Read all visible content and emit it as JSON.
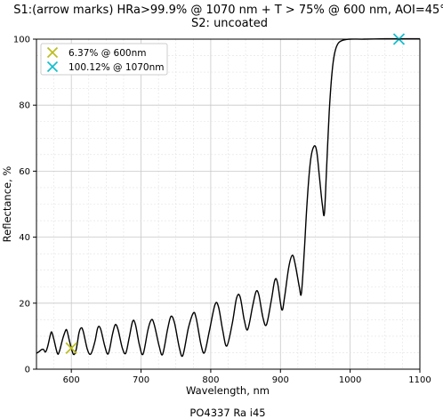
{
  "chart_data": {
    "type": "line",
    "title_line1": "S1:(arrow marks) HRa>99.9% @ 1070 nm + T > 75% @ 600 nm, AOI=45°",
    "title_line2": "S2: uncoated",
    "xlabel": "Wavelength, nm",
    "ylabel": "Reflectance, %",
    "footer": "PO4337 Ra i45",
    "xlim": [
      550,
      1100
    ],
    "ylim": [
      0,
      100
    ],
    "xticks": [
      600,
      700,
      800,
      900,
      1000,
      1100
    ],
    "yticks": [
      0,
      20,
      40,
      60,
      80,
      100
    ],
    "grid": true,
    "line_color": "#000000",
    "series": [
      {
        "points": [
          [
            550,
            4.8
          ],
          [
            553,
            5.2
          ],
          [
            557,
            5.9
          ],
          [
            560,
            6.0
          ],
          [
            563,
            5.2
          ],
          [
            566,
            6.8
          ],
          [
            570,
            10.5
          ],
          [
            572,
            11.2
          ],
          [
            575,
            9.0
          ],
          [
            580,
            4.8
          ],
          [
            583,
            5.5
          ],
          [
            588,
            9.5
          ],
          [
            592,
            11.8
          ],
          [
            594,
            11.5
          ],
          [
            598,
            8.0
          ],
          [
            603,
            4.5
          ],
          [
            607,
            6.0
          ],
          [
            611,
            11.0
          ],
          [
            614,
            12.5
          ],
          [
            617,
            11.5
          ],
          [
            623,
            6.0
          ],
          [
            628,
            4.6
          ],
          [
            634,
            8.5
          ],
          [
            638,
            12.6
          ],
          [
            642,
            12.2
          ],
          [
            648,
            7.0
          ],
          [
            653,
            4.7
          ],
          [
            659,
            10.5
          ],
          [
            663,
            13.5
          ],
          [
            667,
            12.0
          ],
          [
            673,
            6.5
          ],
          [
            678,
            4.8
          ],
          [
            683,
            9.5
          ],
          [
            688,
            14.5
          ],
          [
            692,
            13.5
          ],
          [
            698,
            7.0
          ],
          [
            703,
            4.6
          ],
          [
            710,
            12.0
          ],
          [
            715,
            15.0
          ],
          [
            719,
            13.5
          ],
          [
            726,
            7.0
          ],
          [
            731,
            4.5
          ],
          [
            738,
            12.0
          ],
          [
            743,
            16.0
          ],
          [
            748,
            14.0
          ],
          [
            755,
            6.5
          ],
          [
            760,
            4.2
          ],
          [
            768,
            12.5
          ],
          [
            775,
            17.0
          ],
          [
            779,
            15.5
          ],
          [
            786,
            7.5
          ],
          [
            791,
            5.0
          ],
          [
            798,
            11.5
          ],
          [
            806,
            19.5
          ],
          [
            811,
            19.0
          ],
          [
            817,
            12.0
          ],
          [
            823,
            7.0
          ],
          [
            831,
            14.0
          ],
          [
            837,
            21.5
          ],
          [
            842,
            22.0
          ],
          [
            848,
            15.0
          ],
          [
            853,
            12.0
          ],
          [
            860,
            19.0
          ],
          [
            865,
            23.5
          ],
          [
            869,
            22.5
          ],
          [
            875,
            15.5
          ],
          [
            880,
            13.5
          ],
          [
            887,
            21.0
          ],
          [
            892,
            27.0
          ],
          [
            896,
            26.0
          ],
          [
            902,
            18.0
          ],
          [
            906,
            22.0
          ],
          [
            912,
            31.0
          ],
          [
            917,
            34.5
          ],
          [
            921,
            32.0
          ],
          [
            927,
            25.0
          ],
          [
            930,
            23.0
          ],
          [
            934,
            35.0
          ],
          [
            938,
            50.0
          ],
          [
            943,
            63.0
          ],
          [
            948,
            67.5
          ],
          [
            952,
            66.0
          ],
          [
            956,
            58.0
          ],
          [
            960,
            50.0
          ],
          [
            963,
            47.0
          ],
          [
            966,
            60.0
          ],
          [
            970,
            78.0
          ],
          [
            974,
            90.0
          ],
          [
            978,
            96.0
          ],
          [
            983,
            98.8
          ],
          [
            990,
            99.7
          ],
          [
            1000,
            100.0
          ],
          [
            1020,
            100.0
          ],
          [
            1050,
            100.1
          ],
          [
            1070,
            100.1
          ],
          [
            1100,
            100.1
          ]
        ]
      }
    ],
    "markers": [
      {
        "x": 600,
        "y": 6.37,
        "label": "6.37% @ 600nm",
        "color": "#bcbd22"
      },
      {
        "x": 1070,
        "y": 100.12,
        "label": "100.12% @ 1070nm",
        "color": "#17becf"
      }
    ],
    "legend_position": "top-left"
  }
}
